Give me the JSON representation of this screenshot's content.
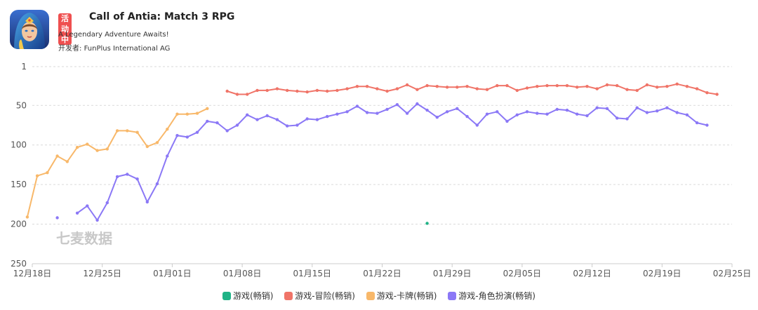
{
  "app": {
    "badge": "活动中",
    "title": "Call of Antia: Match 3 RPG",
    "subtitle": "A Legendary Adventure Awaits!",
    "developer_label": "开发者: ",
    "developer": "FunPlus International AG",
    "icon": "hooded-heroine-app-icon"
  },
  "watermark": "七麦数据",
  "colors": {
    "game": "#1fb386",
    "adventure": "#f07468",
    "card": "#f8b86a",
    "rpg": "#8b78f6",
    "grid": "#d9d9d9",
    "axis_text": "#555555"
  },
  "chart_data": {
    "type": "line",
    "y_reversed": true,
    "ylim": [
      1,
      250
    ],
    "yticks": [
      1,
      50,
      100,
      150,
      200,
      250
    ],
    "x_start": "12月18日",
    "x_end": "02月25日",
    "xticks": [
      {
        "day": 0,
        "label": "12月18日"
      },
      {
        "day": 7,
        "label": "12月25日"
      },
      {
        "day": 14,
        "label": "01月01日"
      },
      {
        "day": 21,
        "label": "01月08日"
      },
      {
        "day": 28,
        "label": "01月15日"
      },
      {
        "day": 35,
        "label": "01月22日"
      },
      {
        "day": 42,
        "label": "01月29日"
      },
      {
        "day": 49,
        "label": "02月05日"
      },
      {
        "day": 56,
        "label": "02月12日"
      },
      {
        "day": 63,
        "label": "02月19日"
      },
      {
        "day": 70,
        "label": "02月25日"
      }
    ],
    "grid": true,
    "legend_position": "bottom",
    "series": [
      {
        "name": "游戏(畅销)",
        "color_key": "game",
        "points": [
          [
            39.5,
            199
          ]
        ]
      },
      {
        "name": "游戏-冒险(畅销)",
        "color_key": "adventure",
        "points": [
          [
            19.5,
            32
          ],
          [
            20.5,
            36
          ],
          [
            21.5,
            36
          ],
          [
            22.5,
            31
          ],
          [
            23.5,
            31
          ],
          [
            24.5,
            29
          ],
          [
            25.5,
            31
          ],
          [
            26.5,
            32
          ],
          [
            27.5,
            33
          ],
          [
            28.5,
            31
          ],
          [
            29.5,
            32
          ],
          [
            30.5,
            31
          ],
          [
            31.5,
            29
          ],
          [
            32.5,
            26
          ],
          [
            33.5,
            26
          ],
          [
            34.5,
            29
          ],
          [
            35.5,
            32
          ],
          [
            36.5,
            29
          ],
          [
            37.5,
            24
          ],
          [
            38.5,
            30
          ],
          [
            39.5,
            25
          ],
          [
            40.5,
            26
          ],
          [
            41.5,
            27
          ],
          [
            42.5,
            27
          ],
          [
            43.5,
            26
          ],
          [
            44.5,
            29
          ],
          [
            45.5,
            30
          ],
          [
            46.5,
            25
          ],
          [
            47.5,
            25
          ],
          [
            48.5,
            31
          ],
          [
            49.5,
            28
          ],
          [
            50.5,
            26
          ],
          [
            51.5,
            25
          ],
          [
            52.5,
            25
          ],
          [
            53.5,
            25
          ],
          [
            54.5,
            27
          ],
          [
            55.5,
            26
          ],
          [
            56.5,
            29
          ],
          [
            57.5,
            24
          ],
          [
            58.5,
            25
          ],
          [
            59.5,
            30
          ],
          [
            60.5,
            31
          ],
          [
            61.5,
            24
          ],
          [
            62.5,
            27
          ],
          [
            63.5,
            26
          ],
          [
            64.5,
            23
          ],
          [
            65.5,
            26
          ],
          [
            66.5,
            29
          ],
          [
            67.5,
            34
          ],
          [
            68.5,
            36
          ]
        ]
      },
      {
        "name": "游戏-卡牌(畅销)",
        "color_key": "card",
        "points": [
          [
            -0.5,
            191
          ],
          [
            0.5,
            139
          ],
          [
            1.5,
            135
          ],
          [
            2.5,
            114
          ],
          [
            3.5,
            121
          ],
          [
            4.5,
            103
          ],
          [
            5.5,
            99
          ],
          [
            6.5,
            107
          ],
          [
            7.5,
            105
          ],
          [
            8.5,
            82
          ],
          [
            9.5,
            82
          ],
          [
            10.5,
            84
          ],
          [
            11.5,
            102
          ],
          [
            12.5,
            97
          ],
          [
            13.5,
            80
          ],
          [
            14.5,
            61
          ],
          [
            15.5,
            61
          ],
          [
            16.5,
            60
          ],
          [
            17.5,
            54
          ]
        ]
      },
      {
        "name": "游戏-角色扮演(畅销)",
        "color_key": "rpg",
        "segments": [
          [
            [
              2.5,
              192
            ]
          ],
          [
            [
              4.5,
              186
            ],
            [
              5.5,
              177
            ],
            [
              6.5,
              195
            ],
            [
              7.5,
              173
            ],
            [
              8.5,
              140
            ],
            [
              9.5,
              137
            ],
            [
              10.5,
              143
            ],
            [
              11.5,
              172
            ],
            [
              12.5,
              149
            ],
            [
              13.5,
              114
            ],
            [
              14.5,
              88
            ],
            [
              15.5,
              90
            ],
            [
              16.5,
              84
            ],
            [
              17.5,
              70
            ],
            [
              18.5,
              72
            ],
            [
              19.5,
              82
            ],
            [
              20.5,
              75
            ],
            [
              21.5,
              62
            ],
            [
              22.5,
              68
            ],
            [
              23.5,
              63
            ],
            [
              24.5,
              68
            ],
            [
              25.5,
              76
            ],
            [
              26.5,
              75
            ],
            [
              27.5,
              67
            ],
            [
              28.5,
              68
            ],
            [
              29.5,
              64
            ],
            [
              30.5,
              61
            ],
            [
              31.5,
              58
            ],
            [
              32.5,
              51
            ],
            [
              33.5,
              59
            ],
            [
              34.5,
              60
            ],
            [
              35.5,
              55
            ],
            [
              36.5,
              49
            ],
            [
              37.5,
              60
            ],
            [
              38.5,
              48
            ],
            [
              39.5,
              56
            ],
            [
              40.5,
              65
            ],
            [
              41.5,
              58
            ],
            [
              42.5,
              54
            ],
            [
              43.5,
              64
            ],
            [
              44.5,
              75
            ],
            [
              45.5,
              61
            ],
            [
              46.5,
              58
            ],
            [
              47.5,
              70
            ],
            [
              48.5,
              62
            ],
            [
              49.5,
              58
            ],
            [
              50.5,
              60
            ],
            [
              51.5,
              61
            ],
            [
              52.5,
              55
            ],
            [
              53.5,
              56
            ],
            [
              54.5,
              61
            ],
            [
              55.5,
              63
            ],
            [
              56.5,
              53
            ],
            [
              57.5,
              54
            ],
            [
              58.5,
              66
            ],
            [
              59.5,
              67
            ],
            [
              60.5,
              53
            ],
            [
              61.5,
              59
            ],
            [
              62.5,
              57
            ],
            [
              63.5,
              53
            ],
            [
              64.5,
              59
            ],
            [
              65.5,
              62
            ],
            [
              66.5,
              72
            ],
            [
              67.5,
              75
            ]
          ]
        ]
      }
    ]
  }
}
